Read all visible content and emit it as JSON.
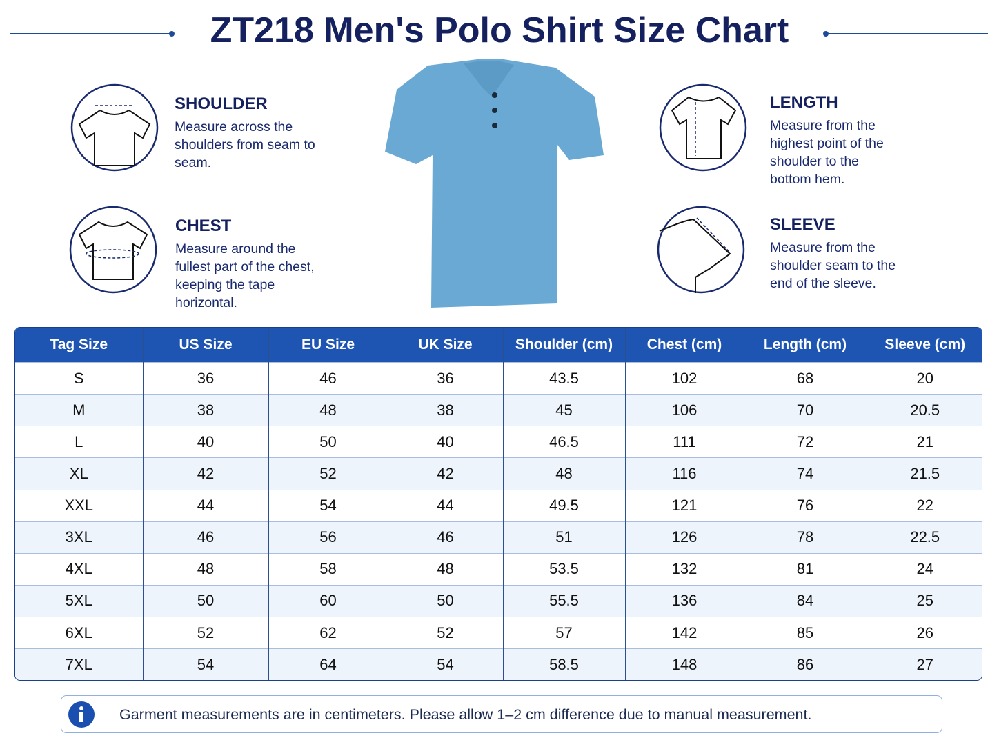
{
  "header": {
    "title": "ZT218 Men's Polo Shirt Size Chart"
  },
  "measures": [
    {
      "label": "SHOULDER",
      "text": "Measure across the shoulders from seam to seam."
    },
    {
      "label": "CHEST",
      "text": "Measure around the fullest part of the chest, keeping the tape horizontal."
    },
    {
      "label": "LENGTH",
      "text": "Measure from the highest point of the shoulder to the bottom hem."
    },
    {
      "label": "SLEEVE",
      "text": "Measure from the shoulder seam to the end of the sleeve."
    }
  ],
  "table": {
    "columns": [
      "Tag Size",
      "US Size",
      "EU Size",
      "UK Size",
      "Shoulder (cm)",
      "Chest (cm)",
      "Length (cm)",
      "Sleeve (cm)"
    ],
    "rows": [
      [
        "S",
        "36",
        "46",
        "36",
        "43.5",
        "102",
        "68",
        "20"
      ],
      [
        "M",
        "38",
        "48",
        "38",
        "45",
        "106",
        "70",
        "20.5"
      ],
      [
        "L",
        "40",
        "50",
        "40",
        "46.5",
        "111",
        "72",
        "21"
      ],
      [
        "XL",
        "42",
        "52",
        "42",
        "48",
        "116",
        "74",
        "21.5"
      ],
      [
        "XXL",
        "44",
        "54",
        "44",
        "49.5",
        "121",
        "76",
        "22"
      ],
      [
        "3XL",
        "46",
        "56",
        "46",
        "51",
        "126",
        "78",
        "22.5"
      ],
      [
        "4XL",
        "48",
        "58",
        "48",
        "53.5",
        "132",
        "81",
        "24"
      ],
      [
        "5XL",
        "50",
        "60",
        "50",
        "55.5",
        "136",
        "84",
        "25"
      ],
      [
        "6XL",
        "52",
        "62",
        "52",
        "57",
        "142",
        "85",
        "26"
      ],
      [
        "7XL",
        "54",
        "64",
        "54",
        "58.5",
        "148",
        "86",
        "27"
      ]
    ]
  },
  "note": "Garment measurements are in centimeters. Please allow 1–2 cm difference due to manual measurement."
}
